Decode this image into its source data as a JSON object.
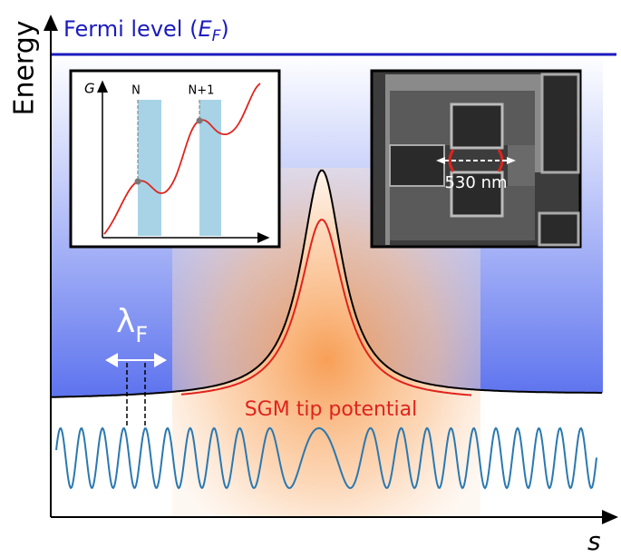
{
  "axes": {
    "y_label": "Energy",
    "x_label": "s"
  },
  "fermi_level": {
    "prefix": "Fermi level (",
    "symbol": "E",
    "subscript": "F",
    "suffix": ")"
  },
  "wavelength": {
    "symbol": "λ",
    "subscript": "F"
  },
  "potential_label": "SGM tip potential",
  "conductance_inset": {
    "y_label": "G",
    "markers": [
      "N",
      "N+1"
    ]
  },
  "sem_inset": {
    "scale_label": "530 nm"
  }
}
